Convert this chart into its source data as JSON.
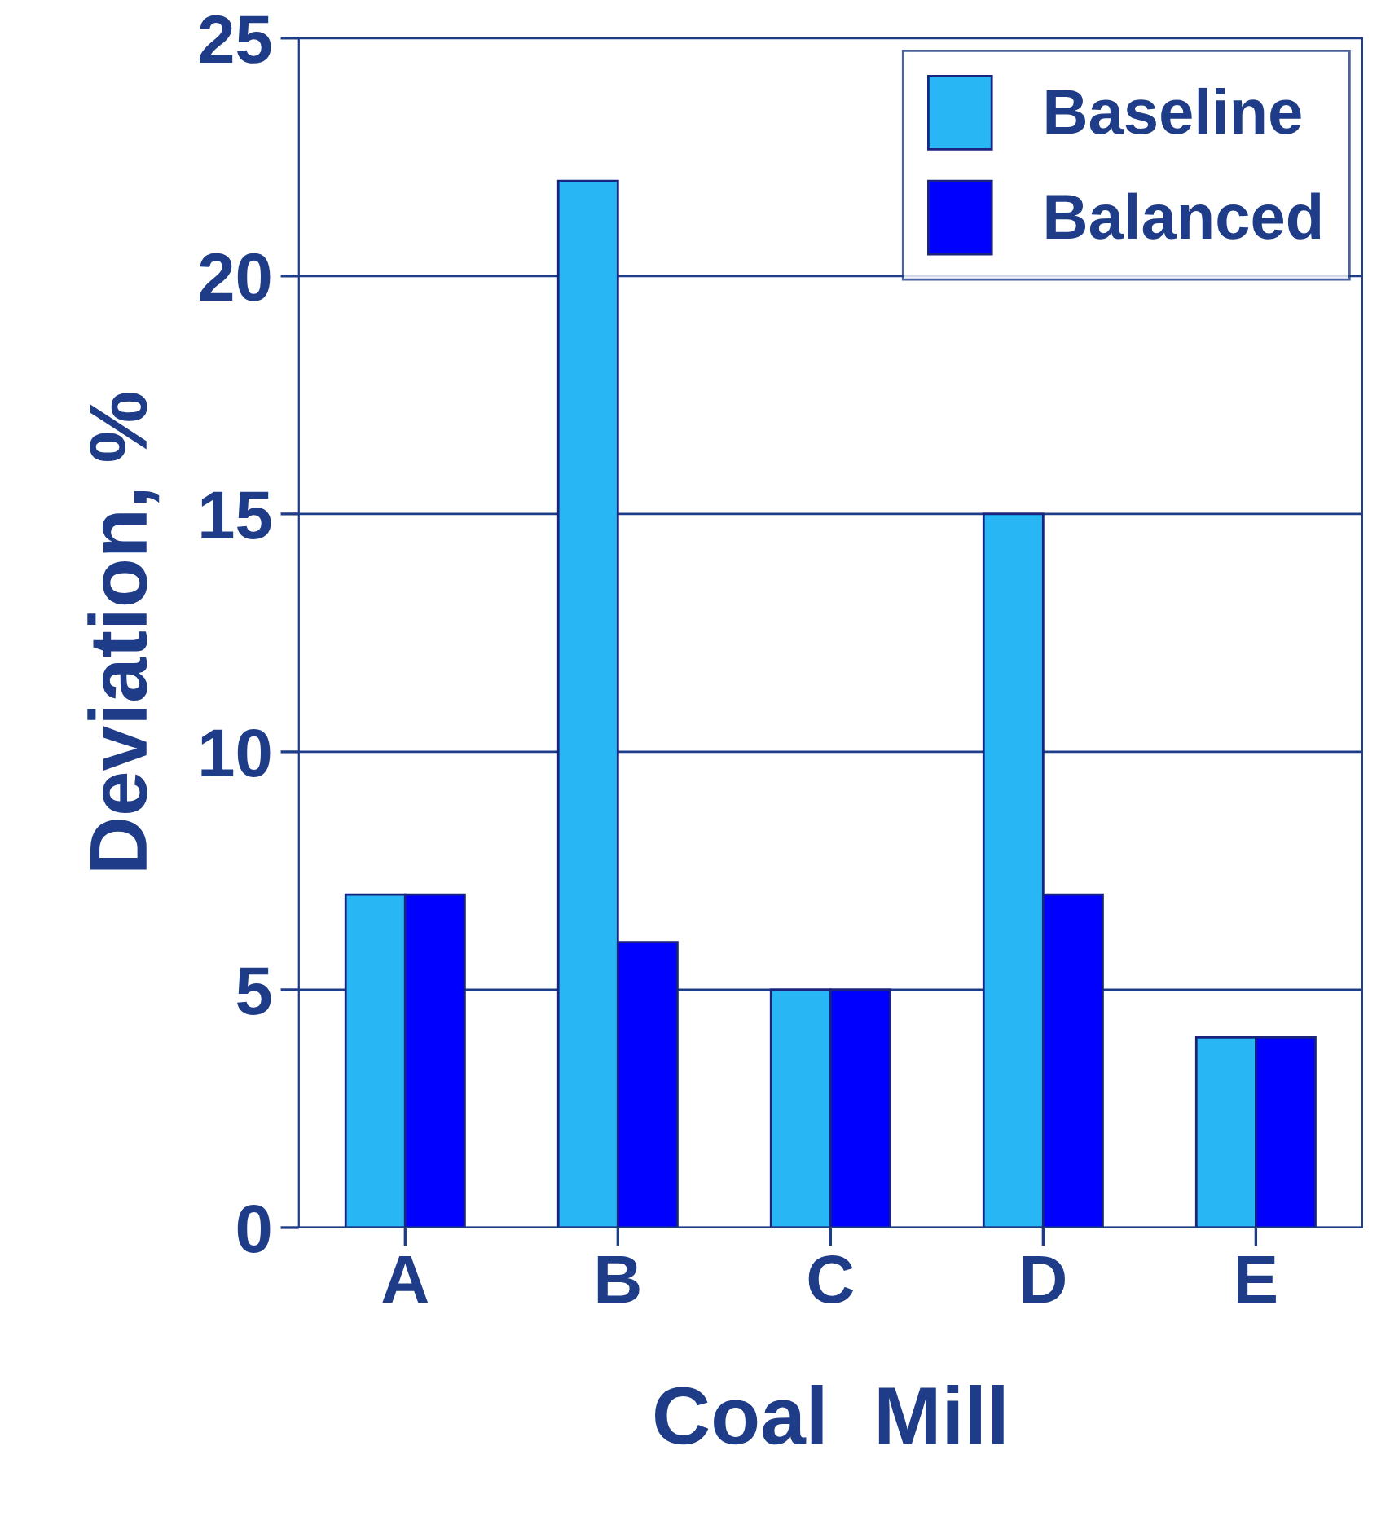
{
  "chart_data": {
    "type": "bar",
    "xlabel": "Coal  Mill",
    "ylabel": "Deviation, %",
    "categories": [
      "A",
      "B",
      "C",
      "D",
      "E"
    ],
    "series": [
      {
        "name": "Baseline",
        "color": "#29b6f4",
        "values": [
          7,
          22,
          5,
          15,
          4
        ]
      },
      {
        "name": "Balanced",
        "color": "#0000ff",
        "values": [
          7,
          6,
          5,
          7,
          4
        ]
      }
    ],
    "ylim": [
      0,
      25
    ],
    "yticks": [
      0,
      5,
      10,
      15,
      20,
      25
    ],
    "grid": "y",
    "legend": "top right"
  }
}
